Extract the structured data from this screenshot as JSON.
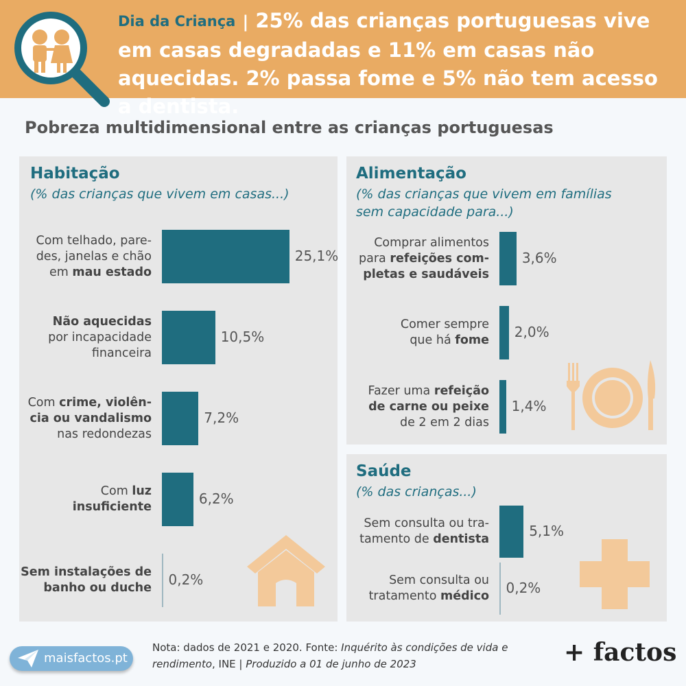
{
  "header": {
    "tag": "Dia da Criança",
    "separator": "|",
    "headline": "25% das crianças portuguesas vive em casas degradadas e 11% em casas não aquecidas. 2% passa fome e 5% não tem acesso a dentista."
  },
  "subtitle": "Pobreza multidimensional entre as crianças portuguesas",
  "chart_data": [
    {
      "type": "bar",
      "orientation": "horizontal",
      "title": "Habitação",
      "subtitle": "(% das crianças que vivem em casas...)",
      "categories": [
        [
          "Com telhado, pare-",
          "des, janelas e chão",
          "em **mau estado**"
        ],
        [
          "**Não aquecidas**",
          "por incapacidade",
          "financeira"
        ],
        [
          "Com **crime, violên-**",
          "**cia ou vandalismo**",
          "nas redondezas"
        ],
        [
          "Com **luz**",
          "**insuficiente**"
        ],
        [
          "**Sem instalações de**",
          "**banho ou duche**"
        ]
      ],
      "values": [
        25.1,
        10.5,
        7.2,
        6.2,
        0.2
      ],
      "value_labels": [
        "25,1%",
        "10,5%",
        "7,2%",
        "6,2%",
        "0,2%"
      ],
      "bar_color": "#1f6d7f",
      "icon": "house-icon"
    },
    {
      "type": "bar",
      "orientation": "horizontal",
      "title": "Alimentação",
      "subtitle": "(% das crianças que vivem em famílias sem capacidade para...)",
      "categories": [
        [
          "Comprar alimentos",
          "para **refeições com-**",
          "**pletas e saudáveis**"
        ],
        [
          "Comer sempre",
          "que há **fome**"
        ],
        [
          "Fazer uma **refeição**",
          "**de carne ou peixe**",
          "de 2 em 2 dias"
        ]
      ],
      "values": [
        3.6,
        2.0,
        1.4
      ],
      "value_labels": [
        "3,6%",
        "2,0%",
        "1,4%"
      ],
      "bar_color": "#1f6d7f",
      "icon": "plate-cutlery-icon"
    },
    {
      "type": "bar",
      "orientation": "horizontal",
      "title": "Saúde",
      "subtitle": "(% das crianças...)",
      "categories": [
        [
          "Sem consulta ou tra-",
          "tamento de **dentista**"
        ],
        [
          "Sem consulta ou",
          "tratamento **médico**"
        ]
      ],
      "values": [
        5.1,
        0.2
      ],
      "value_labels": [
        "5,1%",
        "0,2%"
      ],
      "bar_color": "#1f6d7f",
      "icon": "health-cross-icon"
    }
  ],
  "footer": {
    "note_prefix": "Nota: dados de 2021 e 2020. Fonte: ",
    "source": "Inquérito às condições de vida e rendimento",
    "source_org": ", INE | ",
    "produced": "Produzido a 01 de junho de 2023",
    "site_label": "maisfactos.pt",
    "brand": "+ factos"
  },
  "colors": {
    "header_bg": "#e9ab63",
    "accent": "#1f6d7f",
    "panel_bg": "#e7e7e7",
    "icon_fill": "#f3c99a"
  }
}
